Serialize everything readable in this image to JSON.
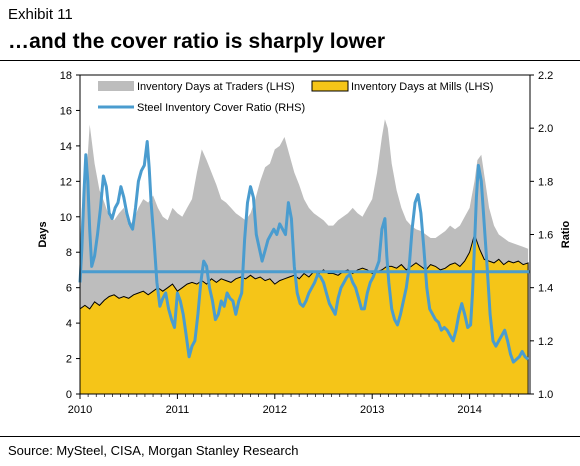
{
  "header": {
    "exhibit": "Exhibit 11",
    "title": "…and the cover ratio is sharply lower"
  },
  "footer": {
    "source": "Source: MySteel, CISA, Morgan Stanley Research"
  },
  "chart_data": {
    "type": "area",
    "ylabel_left": "Days",
    "ylabel_right": "Ratio",
    "ylim_left": [
      0,
      18
    ],
    "ylim_right": [
      1.0,
      2.2
    ],
    "xlim": [
      2010.0,
      2014.62
    ],
    "x_ticks": [
      "2010",
      "2011",
      "2012",
      "2013",
      "2014"
    ],
    "y_left_ticks": [
      "0",
      "2",
      "4",
      "6",
      "8",
      "10",
      "12",
      "14",
      "16",
      "18"
    ],
    "y_right_ticks": [
      "1.0",
      "1.2",
      "1.4",
      "1.6",
      "1.8",
      "2.0",
      "2.2"
    ],
    "legend_position": "top",
    "grid": false,
    "colors": {
      "traders": "#bdbdbd",
      "mills": "#f5c518",
      "ratio": "#4a9ccf",
      "average": "#4a9ccf"
    },
    "average_ratio": 1.46,
    "series": [
      {
        "name": "Inventory Days at Traders (LHS)",
        "axis": "left",
        "style": "area",
        "x": [
          2010.0,
          2010.02,
          2010.06,
          2010.1,
          2010.15,
          2010.2,
          2010.25,
          2010.3,
          2010.35,
          2010.4,
          2010.45,
          2010.5,
          2010.55,
          2010.6,
          2010.65,
          2010.7,
          2010.75,
          2010.8,
          2010.85,
          2010.9,
          2010.95,
          2011.0,
          2011.05,
          2011.1,
          2011.15,
          2011.2,
          2011.25,
          2011.3,
          2011.35,
          2011.4,
          2011.45,
          2011.5,
          2011.55,
          2011.6,
          2011.65,
          2011.7,
          2011.75,
          2011.8,
          2011.85,
          2011.9,
          2011.95,
          2012.0,
          2012.05,
          2012.1,
          2012.15,
          2012.2,
          2012.25,
          2012.3,
          2012.35,
          2012.4,
          2012.45,
          2012.5,
          2012.55,
          2012.6,
          2012.65,
          2012.7,
          2012.75,
          2012.8,
          2012.85,
          2012.9,
          2012.95,
          2013.0,
          2013.05,
          2013.1,
          2013.13,
          2013.16,
          2013.2,
          2013.25,
          2013.3,
          2013.35,
          2013.4,
          2013.45,
          2013.5,
          2013.55,
          2013.6,
          2013.65,
          2013.7,
          2013.75,
          2013.8,
          2013.85,
          2013.9,
          2013.95,
          2014.0,
          2014.05,
          2014.08,
          2014.12,
          2014.16,
          2014.2,
          2014.25,
          2014.3,
          2014.35,
          2014.4,
          2014.45,
          2014.5,
          2014.55,
          2014.6
        ],
        "values": [
          8.5,
          10.5,
          11.8,
          15.2,
          13.0,
          11.5,
          10.8,
          10.0,
          9.8,
          10.2,
          10.5,
          9.5,
          9.8,
          10.5,
          11.0,
          10.8,
          11.2,
          10.5,
          10.0,
          9.8,
          10.5,
          10.2,
          10.0,
          10.5,
          11.0,
          12.5,
          13.8,
          13.2,
          12.5,
          11.8,
          11.0,
          10.8,
          10.5,
          10.2,
          10.0,
          9.8,
          10.2,
          11.0,
          12.0,
          12.8,
          13.0,
          13.8,
          14.0,
          14.5,
          13.5,
          12.5,
          11.8,
          11.0,
          10.5,
          10.2,
          10.0,
          9.8,
          9.5,
          9.5,
          9.8,
          10.0,
          10.2,
          10.5,
          10.2,
          10.0,
          10.5,
          11.0,
          12.5,
          14.5,
          15.5,
          15.0,
          13.0,
          11.5,
          10.5,
          9.8,
          9.5,
          9.3,
          9.2,
          9.0,
          8.8,
          8.8,
          9.0,
          9.2,
          9.5,
          9.3,
          9.5,
          10.0,
          10.5,
          12.0,
          13.2,
          13.5,
          12.0,
          10.5,
          9.5,
          9.0,
          8.8,
          8.6,
          8.5,
          8.4,
          8.3,
          8.2
        ]
      },
      {
        "name": "Inventory Days at Mills (LHS)",
        "axis": "left",
        "style": "area",
        "x": [
          2010.0,
          2010.05,
          2010.1,
          2010.15,
          2010.2,
          2010.25,
          2010.3,
          2010.35,
          2010.4,
          2010.45,
          2010.5,
          2010.55,
          2010.6,
          2010.65,
          2010.7,
          2010.75,
          2010.8,
          2010.85,
          2010.9,
          2010.95,
          2011.0,
          2011.05,
          2011.1,
          2011.15,
          2011.2,
          2011.25,
          2011.3,
          2011.35,
          2011.4,
          2011.45,
          2011.5,
          2011.55,
          2011.6,
          2011.65,
          2011.7,
          2011.75,
          2011.8,
          2011.85,
          2011.9,
          2011.95,
          2012.0,
          2012.05,
          2012.1,
          2012.15,
          2012.2,
          2012.25,
          2012.3,
          2012.35,
          2012.4,
          2012.45,
          2012.5,
          2012.55,
          2012.6,
          2012.65,
          2012.7,
          2012.75,
          2012.8,
          2012.85,
          2012.9,
          2012.95,
          2013.0,
          2013.05,
          2013.1,
          2013.15,
          2013.2,
          2013.25,
          2013.3,
          2013.35,
          2013.4,
          2013.45,
          2013.5,
          2013.55,
          2013.6,
          2013.65,
          2013.7,
          2013.75,
          2013.8,
          2013.85,
          2013.9,
          2013.95,
          2014.0,
          2014.05,
          2014.1,
          2014.15,
          2014.2,
          2014.25,
          2014.3,
          2014.35,
          2014.4,
          2014.45,
          2014.5,
          2014.55,
          2014.6
        ],
        "values": [
          4.8,
          5.0,
          4.8,
          5.2,
          5.0,
          5.3,
          5.5,
          5.6,
          5.4,
          5.5,
          5.4,
          5.6,
          5.7,
          5.8,
          5.6,
          5.8,
          6.0,
          5.8,
          6.0,
          6.2,
          5.8,
          6.0,
          6.2,
          6.3,
          6.2,
          6.4,
          6.2,
          6.5,
          6.3,
          6.5,
          6.4,
          6.3,
          6.5,
          6.6,
          6.5,
          6.7,
          6.5,
          6.6,
          6.4,
          6.5,
          6.2,
          6.4,
          6.5,
          6.6,
          6.7,
          6.5,
          6.8,
          6.6,
          6.9,
          6.8,
          7.0,
          6.8,
          6.8,
          6.7,
          6.9,
          7.0,
          6.8,
          7.0,
          7.1,
          7.0,
          6.8,
          6.9,
          7.0,
          7.2,
          7.2,
          7.1,
          7.3,
          7.0,
          7.2,
          7.4,
          7.2,
          7.0,
          7.3,
          7.2,
          7.0,
          7.1,
          7.3,
          7.4,
          7.2,
          7.5,
          8.0,
          9.0,
          8.2,
          7.6,
          7.5,
          7.4,
          7.6,
          7.3,
          7.5,
          7.4,
          7.5,
          7.3,
          7.4
        ]
      },
      {
        "name": "Steel Inventory Cover Ratio (RHS)",
        "axis": "right",
        "style": "line",
        "x": [
          2010.0,
          2010.02,
          2010.04,
          2010.06,
          2010.08,
          2010.1,
          2010.12,
          2010.15,
          2010.18,
          2010.21,
          2010.24,
          2010.27,
          2010.3,
          2010.33,
          2010.36,
          2010.39,
          2010.42,
          2010.45,
          2010.48,
          2010.51,
          2010.54,
          2010.57,
          2010.6,
          2010.63,
          2010.66,
          2010.69,
          2010.71,
          2010.73,
          2010.76,
          2010.79,
          2010.82,
          2010.85,
          2010.88,
          2010.91,
          2010.94,
          2010.97,
          2011.0,
          2011.03,
          2011.06,
          2011.09,
          2011.12,
          2011.15,
          2011.18,
          2011.21,
          2011.24,
          2011.27,
          2011.3,
          2011.33,
          2011.36,
          2011.39,
          2011.42,
          2011.45,
          2011.48,
          2011.51,
          2011.54,
          2011.57,
          2011.6,
          2011.63,
          2011.66,
          2011.69,
          2011.72,
          2011.75,
          2011.78,
          2011.81,
          2011.84,
          2011.87,
          2011.9,
          2011.93,
          2011.96,
          2011.99,
          2012.02,
          2012.05,
          2012.08,
          2012.11,
          2012.14,
          2012.17,
          2012.2,
          2012.23,
          2012.26,
          2012.29,
          2012.32,
          2012.35,
          2012.38,
          2012.41,
          2012.44,
          2012.47,
          2012.5,
          2012.53,
          2012.56,
          2012.59,
          2012.62,
          2012.65,
          2012.68,
          2012.71,
          2012.74,
          2012.77,
          2012.8,
          2012.83,
          2012.86,
          2012.89,
          2012.92,
          2012.95,
          2012.98,
          2013.01,
          2013.04,
          2013.07,
          2013.1,
          2013.13,
          2013.15,
          2013.17,
          2013.2,
          2013.23,
          2013.26,
          2013.29,
          2013.32,
          2013.35,
          2013.38,
          2013.41,
          2013.44,
          2013.47,
          2013.5,
          2013.53,
          2013.56,
          2013.59,
          2013.62,
          2013.65,
          2013.68,
          2013.71,
          2013.74,
          2013.77,
          2013.8,
          2013.83,
          2013.86,
          2013.89,
          2013.92,
          2013.95,
          2013.98,
          2014.01,
          2014.03,
          2014.05,
          2014.07,
          2014.09,
          2014.12,
          2014.15,
          2014.18,
          2014.21,
          2014.24,
          2014.27,
          2014.3,
          2014.33,
          2014.36,
          2014.39,
          2014.42,
          2014.45,
          2014.48,
          2014.51,
          2014.54,
          2014.57,
          2014.6
        ],
        "values": [
          1.42,
          1.55,
          1.75,
          1.9,
          1.8,
          1.62,
          1.48,
          1.52,
          1.6,
          1.7,
          1.82,
          1.78,
          1.68,
          1.66,
          1.7,
          1.72,
          1.78,
          1.74,
          1.68,
          1.64,
          1.62,
          1.7,
          1.8,
          1.84,
          1.86,
          1.95,
          1.85,
          1.72,
          1.58,
          1.42,
          1.33,
          1.36,
          1.38,
          1.32,
          1.28,
          1.25,
          1.38,
          1.35,
          1.3,
          1.22,
          1.14,
          1.18,
          1.2,
          1.3,
          1.42,
          1.5,
          1.48,
          1.4,
          1.35,
          1.28,
          1.3,
          1.35,
          1.33,
          1.38,
          1.36,
          1.35,
          1.3,
          1.35,
          1.38,
          1.58,
          1.72,
          1.78,
          1.74,
          1.6,
          1.55,
          1.5,
          1.54,
          1.58,
          1.6,
          1.62,
          1.6,
          1.64,
          1.62,
          1.6,
          1.72,
          1.66,
          1.48,
          1.38,
          1.34,
          1.33,
          1.35,
          1.38,
          1.4,
          1.42,
          1.45,
          1.44,
          1.42,
          1.38,
          1.34,
          1.32,
          1.3,
          1.36,
          1.4,
          1.42,
          1.44,
          1.45,
          1.42,
          1.4,
          1.36,
          1.32,
          1.32,
          1.38,
          1.42,
          1.44,
          1.47,
          1.5,
          1.62,
          1.66,
          1.52,
          1.42,
          1.32,
          1.28,
          1.26,
          1.3,
          1.35,
          1.4,
          1.48,
          1.62,
          1.72,
          1.75,
          1.68,
          1.55,
          1.4,
          1.32,
          1.3,
          1.28,
          1.27,
          1.24,
          1.25,
          1.24,
          1.22,
          1.2,
          1.24,
          1.3,
          1.34,
          1.3,
          1.25,
          1.26,
          1.38,
          1.56,
          1.74,
          1.86,
          1.8,
          1.64,
          1.48,
          1.3,
          1.2,
          1.18,
          1.2,
          1.22,
          1.24,
          1.2,
          1.15,
          1.12,
          1.13,
          1.14,
          1.16,
          1.14,
          1.13
        ]
      }
    ]
  }
}
